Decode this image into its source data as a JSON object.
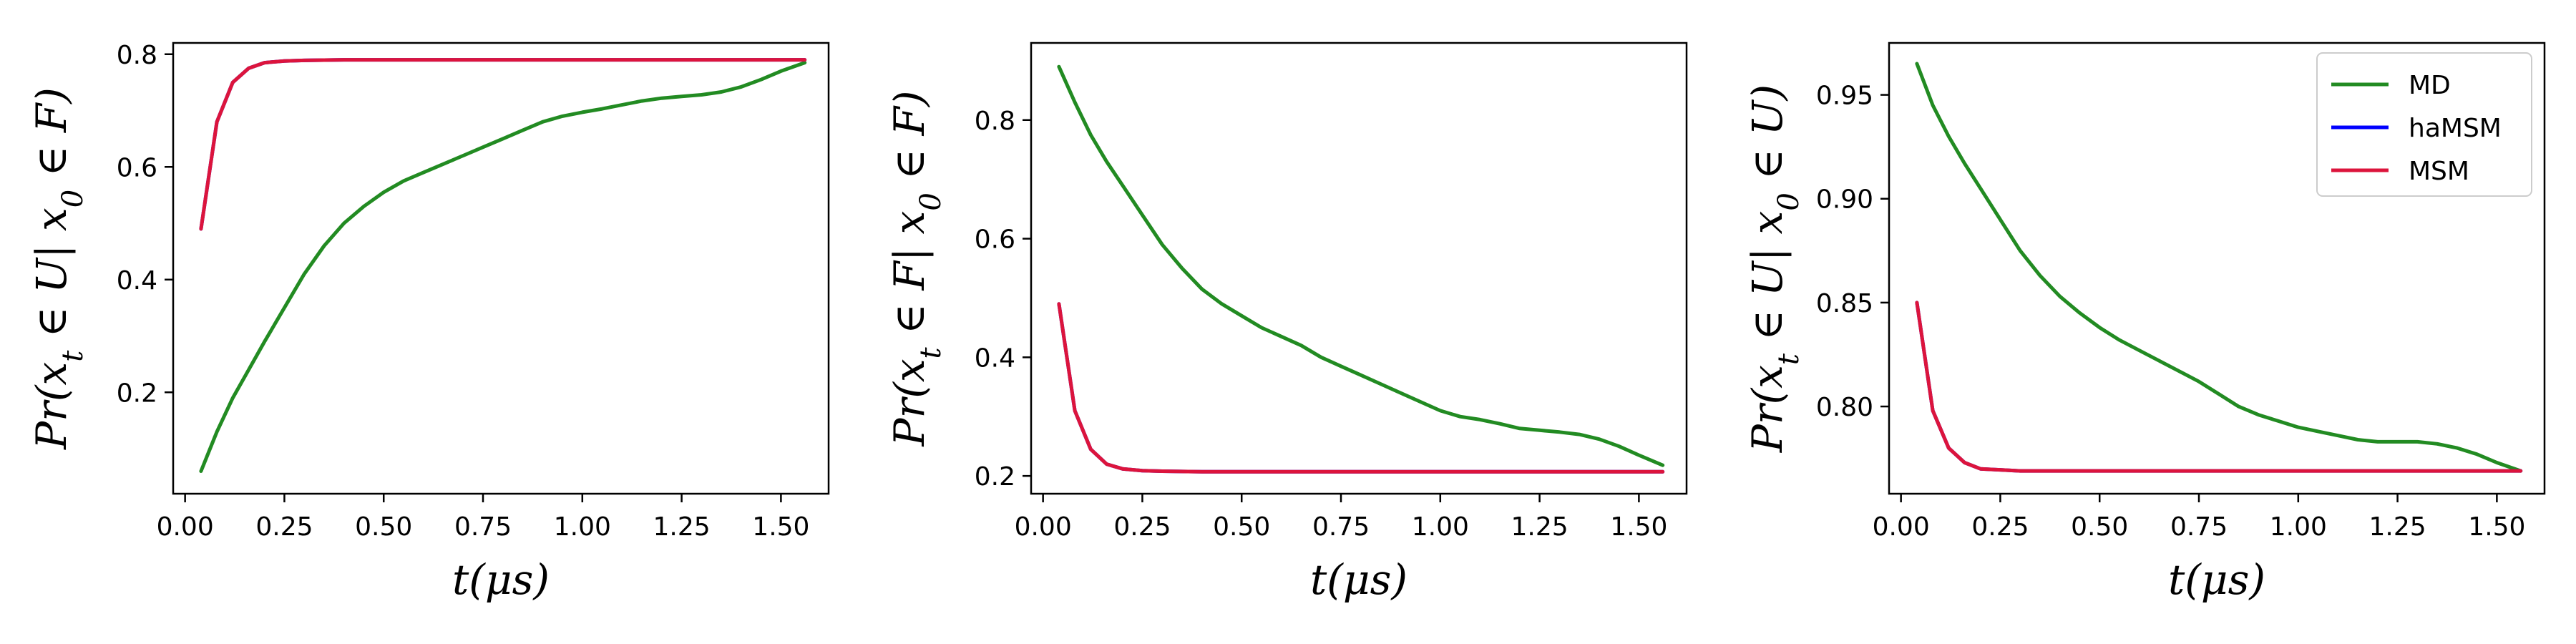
{
  "chart_data": [
    {
      "type": "line",
      "title": "",
      "xlabel": "t(μs)",
      "ylabel": "Pr(x_t ∈ U| x_0 ∈ F)",
      "xlim": [
        -0.03,
        1.62
      ],
      "ylim": [
        0.02,
        0.82
      ],
      "xticks": [
        0.0,
        0.25,
        0.5,
        0.75,
        1.0,
        1.25,
        1.5
      ],
      "xtick_labels": [
        "0.00",
        "0.25",
        "0.50",
        "0.75",
        "1.00",
        "1.25",
        "1.50"
      ],
      "yticks": [
        0.2,
        0.4,
        0.6,
        0.8
      ],
      "ytick_labels": [
        "0.2",
        "0.4",
        "0.6",
        "0.8"
      ],
      "grid": false,
      "series": [
        {
          "name": "MD",
          "color": "#228B22",
          "x": [
            0.04,
            0.08,
            0.12,
            0.16,
            0.2,
            0.25,
            0.3,
            0.35,
            0.4,
            0.45,
            0.5,
            0.55,
            0.6,
            0.65,
            0.7,
            0.75,
            0.8,
            0.85,
            0.9,
            0.95,
            1.0,
            1.05,
            1.1,
            1.15,
            1.2,
            1.25,
            1.3,
            1.35,
            1.4,
            1.45,
            1.5,
            1.56
          ],
          "y": [
            0.06,
            0.13,
            0.19,
            0.24,
            0.29,
            0.35,
            0.41,
            0.46,
            0.5,
            0.53,
            0.555,
            0.575,
            0.59,
            0.605,
            0.62,
            0.635,
            0.65,
            0.665,
            0.68,
            0.69,
            0.697,
            0.703,
            0.71,
            0.717,
            0.722,
            0.725,
            0.728,
            0.733,
            0.742,
            0.755,
            0.77,
            0.785
          ]
        },
        {
          "name": "haMSM",
          "color": "#0000ff",
          "x": [
            0.04,
            0.08,
            0.12,
            0.16,
            0.2,
            0.25,
            0.3,
            0.4,
            0.6,
            0.8,
            1.0,
            1.2,
            1.4,
            1.56
          ],
          "y": [
            0.49,
            0.68,
            0.75,
            0.775,
            0.785,
            0.788,
            0.789,
            0.79,
            0.79,
            0.79,
            0.79,
            0.79,
            0.79,
            0.79
          ]
        },
        {
          "name": "MSM",
          "color": "#dc143c",
          "x": [
            0.04,
            0.08,
            0.12,
            0.16,
            0.2,
            0.25,
            0.3,
            0.4,
            0.6,
            0.8,
            1.0,
            1.2,
            1.4,
            1.56
          ],
          "y": [
            0.49,
            0.68,
            0.75,
            0.775,
            0.785,
            0.788,
            0.789,
            0.79,
            0.79,
            0.79,
            0.79,
            0.79,
            0.79,
            0.79
          ]
        }
      ]
    },
    {
      "type": "line",
      "title": "",
      "xlabel": "t(μs)",
      "ylabel": "Pr(x_t ∈ F| x_0 ∈ F)",
      "xlim": [
        -0.03,
        1.62
      ],
      "ylim": [
        0.17,
        0.93
      ],
      "xticks": [
        0.0,
        0.25,
        0.5,
        0.75,
        1.0,
        1.25,
        1.5
      ],
      "xtick_labels": [
        "0.00",
        "0.25",
        "0.50",
        "0.75",
        "1.00",
        "1.25",
        "1.50"
      ],
      "yticks": [
        0.2,
        0.4,
        0.6,
        0.8
      ],
      "ytick_labels": [
        "0.2",
        "0.4",
        "0.6",
        "0.8"
      ],
      "grid": false,
      "series": [
        {
          "name": "MD",
          "color": "#228B22",
          "x": [
            0.04,
            0.08,
            0.12,
            0.16,
            0.2,
            0.25,
            0.3,
            0.35,
            0.4,
            0.45,
            0.5,
            0.55,
            0.6,
            0.65,
            0.7,
            0.75,
            0.8,
            0.85,
            0.9,
            0.95,
            1.0,
            1.05,
            1.1,
            1.15,
            1.2,
            1.25,
            1.3,
            1.35,
            1.4,
            1.45,
            1.5,
            1.56
          ],
          "y": [
            0.89,
            0.83,
            0.775,
            0.73,
            0.69,
            0.64,
            0.59,
            0.55,
            0.515,
            0.49,
            0.47,
            0.45,
            0.435,
            0.42,
            0.4,
            0.385,
            0.37,
            0.355,
            0.34,
            0.325,
            0.31,
            0.3,
            0.295,
            0.288,
            0.28,
            0.277,
            0.274,
            0.27,
            0.262,
            0.25,
            0.235,
            0.218
          ]
        },
        {
          "name": "haMSM",
          "color": "#0000ff",
          "x": [
            0.04,
            0.08,
            0.12,
            0.16,
            0.2,
            0.25,
            0.3,
            0.4,
            0.6,
            0.8,
            1.0,
            1.2,
            1.4,
            1.56
          ],
          "y": [
            0.49,
            0.31,
            0.245,
            0.22,
            0.212,
            0.209,
            0.208,
            0.207,
            0.207,
            0.207,
            0.207,
            0.207,
            0.207,
            0.207
          ]
        },
        {
          "name": "MSM",
          "color": "#dc143c",
          "x": [
            0.04,
            0.08,
            0.12,
            0.16,
            0.2,
            0.25,
            0.3,
            0.4,
            0.6,
            0.8,
            1.0,
            1.2,
            1.4,
            1.56
          ],
          "y": [
            0.49,
            0.31,
            0.245,
            0.22,
            0.212,
            0.209,
            0.208,
            0.207,
            0.207,
            0.207,
            0.207,
            0.207,
            0.207,
            0.207
          ]
        }
      ]
    },
    {
      "type": "line",
      "title": "",
      "xlabel": "t(μs)",
      "ylabel": "Pr(x_t ∈ U| x_0 ∈ U)",
      "xlim": [
        -0.03,
        1.62
      ],
      "ylim": [
        0.758,
        0.975
      ],
      "xticks": [
        0.0,
        0.25,
        0.5,
        0.75,
        1.0,
        1.25,
        1.5
      ],
      "xtick_labels": [
        "0.00",
        "0.25",
        "0.50",
        "0.75",
        "1.00",
        "1.25",
        "1.50"
      ],
      "yticks": [
        0.8,
        0.85,
        0.9,
        0.95
      ],
      "ytick_labels": [
        "0.80",
        "0.85",
        "0.90",
        "0.95"
      ],
      "grid": false,
      "legend": {
        "placement": "top-right",
        "entries": [
          "MD",
          "haMSM",
          "MSM"
        ]
      },
      "series": [
        {
          "name": "MD",
          "color": "#228B22",
          "x": [
            0.04,
            0.08,
            0.12,
            0.16,
            0.2,
            0.25,
            0.3,
            0.35,
            0.4,
            0.45,
            0.5,
            0.55,
            0.6,
            0.65,
            0.7,
            0.75,
            0.8,
            0.85,
            0.9,
            0.95,
            1.0,
            1.05,
            1.1,
            1.15,
            1.2,
            1.25,
            1.3,
            1.35,
            1.4,
            1.45,
            1.5,
            1.56
          ],
          "y": [
            0.965,
            0.945,
            0.93,
            0.917,
            0.905,
            0.89,
            0.875,
            0.863,
            0.853,
            0.845,
            0.838,
            0.832,
            0.827,
            0.822,
            0.817,
            0.812,
            0.806,
            0.8,
            0.796,
            0.793,
            0.79,
            0.788,
            0.786,
            0.784,
            0.783,
            0.783,
            0.783,
            0.782,
            0.78,
            0.777,
            0.773,
            0.769
          ]
        },
        {
          "name": "haMSM",
          "color": "#0000ff",
          "x": [
            0.04,
            0.08,
            0.12,
            0.16,
            0.2,
            0.25,
            0.3,
            0.4,
            0.6,
            0.8,
            1.0,
            1.2,
            1.4,
            1.56
          ],
          "y": [
            0.85,
            0.798,
            0.78,
            0.773,
            0.77,
            0.7695,
            0.769,
            0.769,
            0.769,
            0.769,
            0.769,
            0.769,
            0.769,
            0.769
          ]
        },
        {
          "name": "MSM",
          "color": "#dc143c",
          "x": [
            0.04,
            0.08,
            0.12,
            0.16,
            0.2,
            0.25,
            0.3,
            0.4,
            0.6,
            0.8,
            1.0,
            1.2,
            1.4,
            1.56
          ],
          "y": [
            0.85,
            0.798,
            0.78,
            0.773,
            0.77,
            0.7695,
            0.769,
            0.769,
            0.769,
            0.769,
            0.769,
            0.769,
            0.769,
            0.769
          ]
        }
      ]
    }
  ]
}
